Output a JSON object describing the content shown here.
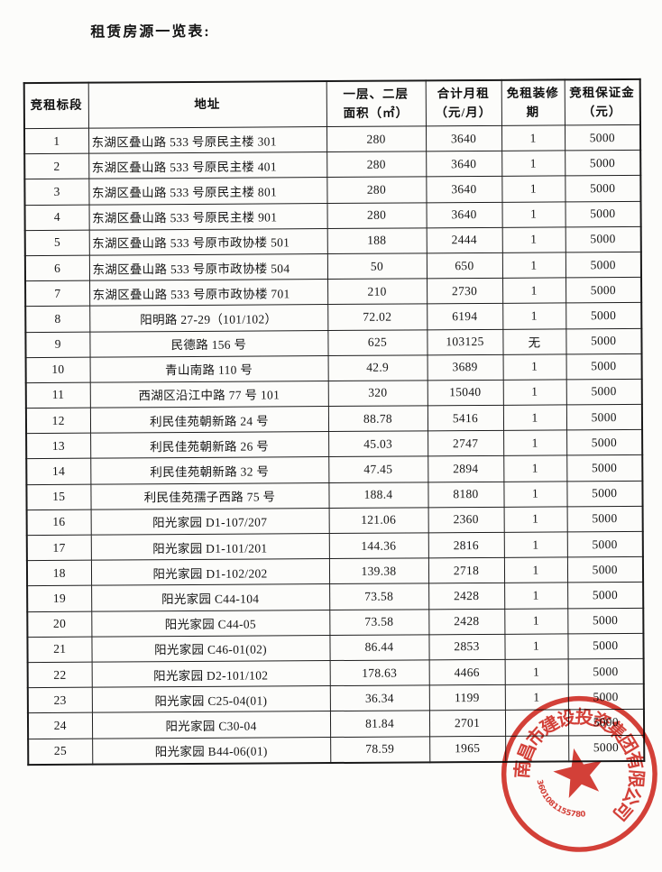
{
  "page": {
    "title": "租赁房源一览表:"
  },
  "table": {
    "headers": [
      "竞租标段",
      "地址",
      "一层、二层\n面积（㎡）",
      "合计月租\n（元/月）",
      "免租装修期",
      "竞租保证金\n（元）"
    ],
    "rows": [
      {
        "no": "1",
        "address": "东湖区叠山路 533 号原民主楼 301",
        "area": "280",
        "rent": "3640",
        "rent_free": "1",
        "deposit": "5000"
      },
      {
        "no": "2",
        "address": "东湖区叠山路 533 号原民主楼 401",
        "area": "280",
        "rent": "3640",
        "rent_free": "1",
        "deposit": "5000"
      },
      {
        "no": "3",
        "address": "东湖区叠山路 533 号原民主楼 801",
        "area": "280",
        "rent": "3640",
        "rent_free": "1",
        "deposit": "5000"
      },
      {
        "no": "4",
        "address": "东湖区叠山路 533 号原民主楼 901",
        "area": "280",
        "rent": "3640",
        "rent_free": "1",
        "deposit": "5000"
      },
      {
        "no": "5",
        "address": "东湖区叠山路 533 号原市政协楼 501",
        "area": "188",
        "rent": "2444",
        "rent_free": "1",
        "deposit": "5000"
      },
      {
        "no": "6",
        "address": "东湖区叠山路 533 号原市政协楼 504",
        "area": "50",
        "rent": "650",
        "rent_free": "1",
        "deposit": "5000"
      },
      {
        "no": "7",
        "address": "东湖区叠山路 533 号原市政协楼 701",
        "area": "210",
        "rent": "2730",
        "rent_free": "1",
        "deposit": "5000"
      },
      {
        "no": "8",
        "address": "阳明路 27-29（101/102）",
        "area": "72.02",
        "rent": "6194",
        "rent_free": "1",
        "deposit": "5000"
      },
      {
        "no": "9",
        "address": "民德路 156 号",
        "area": "625",
        "rent": "103125",
        "rent_free": "无",
        "deposit": "5000"
      },
      {
        "no": "10",
        "address": "青山南路 110 号",
        "area": "42.9",
        "rent": "3689",
        "rent_free": "1",
        "deposit": "5000"
      },
      {
        "no": "11",
        "address": "西湖区沿江中路 77 号 101",
        "area": "320",
        "rent": "15040",
        "rent_free": "1",
        "deposit": "5000"
      },
      {
        "no": "12",
        "address": "利民佳苑朝新路 24 号",
        "area": "88.78",
        "rent": "5416",
        "rent_free": "1",
        "deposit": "5000"
      },
      {
        "no": "13",
        "address": "利民佳苑朝新路 26 号",
        "area": "45.03",
        "rent": "2747",
        "rent_free": "1",
        "deposit": "5000"
      },
      {
        "no": "14",
        "address": "利民佳苑朝新路 32 号",
        "area": "47.45",
        "rent": "2894",
        "rent_free": "1",
        "deposit": "5000"
      },
      {
        "no": "15",
        "address": "利民佳苑孺子西路 75 号",
        "area": "188.4",
        "rent": "8180",
        "rent_free": "1",
        "deposit": "5000"
      },
      {
        "no": "16",
        "address": "阳光家园 D1-107/207",
        "area": "121.06",
        "rent": "2360",
        "rent_free": "1",
        "deposit": "5000"
      },
      {
        "no": "17",
        "address": "阳光家园 D1-101/201",
        "area": "144.36",
        "rent": "2816",
        "rent_free": "1",
        "deposit": "5000"
      },
      {
        "no": "18",
        "address": "阳光家园 D1-102/202",
        "area": "139.38",
        "rent": "2718",
        "rent_free": "1",
        "deposit": "5000"
      },
      {
        "no": "19",
        "address": "阳光家园 C44-104",
        "area": "73.58",
        "rent": "2428",
        "rent_free": "1",
        "deposit": "5000"
      },
      {
        "no": "20",
        "address": "阳光家园 C44-05",
        "area": "73.58",
        "rent": "2428",
        "rent_free": "1",
        "deposit": "5000"
      },
      {
        "no": "21",
        "address": "阳光家园 C46-01(02)",
        "area": "86.44",
        "rent": "2853",
        "rent_free": "1",
        "deposit": "5000"
      },
      {
        "no": "22",
        "address": "阳光家园 D2-101/102",
        "area": "178.63",
        "rent": "4466",
        "rent_free": "1",
        "deposit": "5000"
      },
      {
        "no": "23",
        "address": "阳光家园 C25-04(01)",
        "area": "36.34",
        "rent": "1199",
        "rent_free": "1",
        "deposit": "5000"
      },
      {
        "no": "24",
        "address": "阳光家园 C30-04",
        "area": "81.84",
        "rent": "2701",
        "rent_free": "",
        "deposit": "5000"
      },
      {
        "no": "25",
        "address": "阳光家园 B44-06(01)",
        "area": "78.59",
        "rent": "1965",
        "rent_free": "",
        "deposit": "5000"
      }
    ]
  },
  "stamp": {
    "company": "南昌市建设投资集团有限公司",
    "number": "3601081155780",
    "color": "#cf2f27"
  }
}
